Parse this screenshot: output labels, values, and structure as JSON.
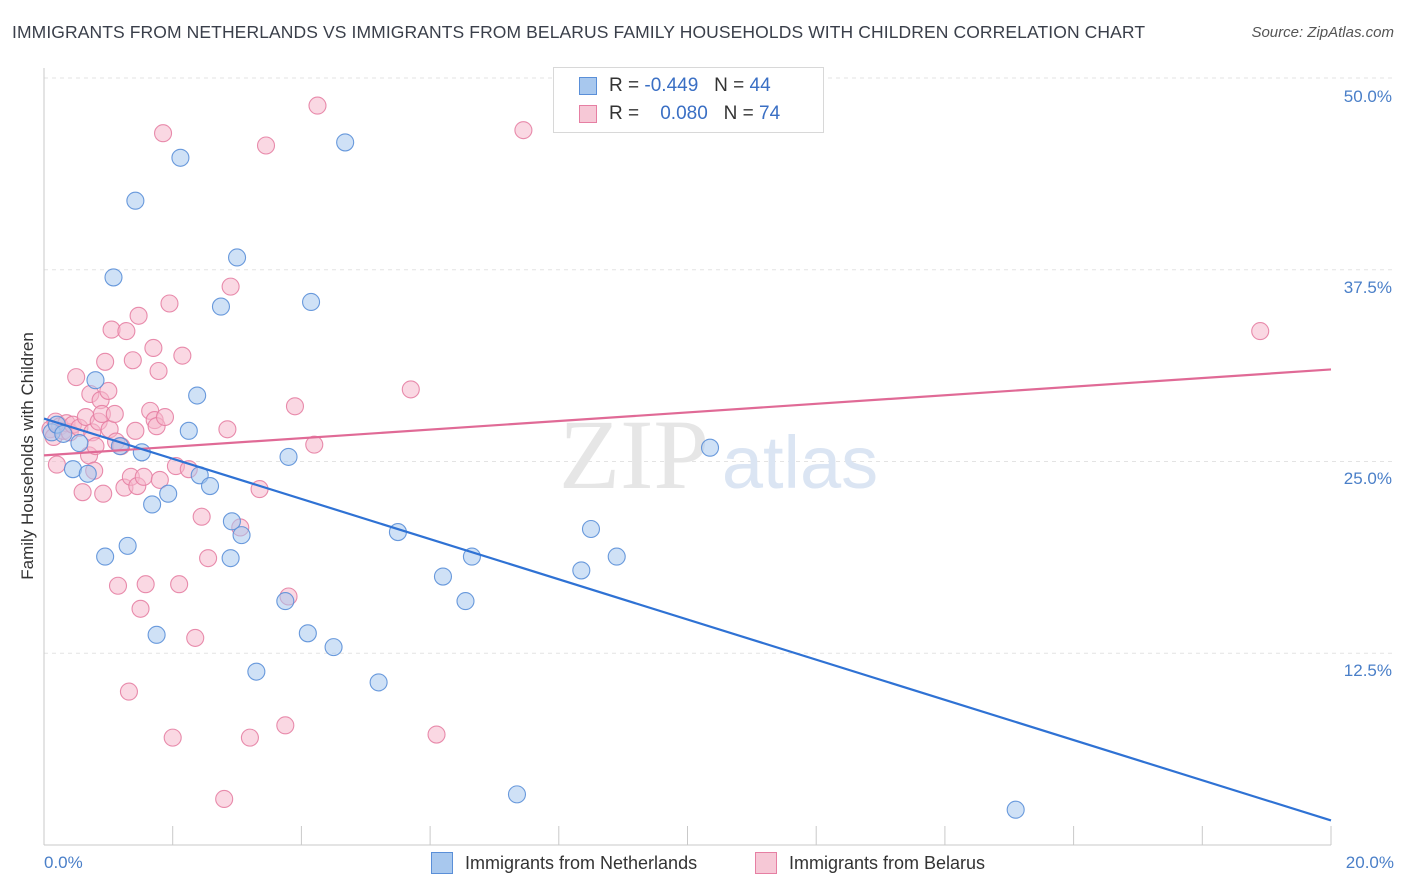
{
  "title": "IMMIGRANTS FROM NETHERLANDS VS IMMIGRANTS FROM BELARUS FAMILY HOUSEHOLDS WITH CHILDREN CORRELATION CHART",
  "source": "Source: ZipAtlas.com",
  "watermark": {
    "zip": "ZIP",
    "atlas": "atlas"
  },
  "stats": {
    "netherlands": {
      "r_label": "R =",
      "r": "-0.449",
      "n_label": "N =",
      "n": "44"
    },
    "belarus": {
      "r_label": "R =",
      "r": "0.080",
      "n_label": "N =",
      "n": "74"
    }
  },
  "legend": {
    "netherlands": "Immigrants from Netherlands",
    "belarus": "Immigrants from Belarus"
  },
  "colors": {
    "netherlands_fill": "#a8c8ee",
    "netherlands_stroke": "#5a8fd8",
    "netherlands_line": "#2f72d4",
    "belarus_fill": "#f6b8cc",
    "belarus_stroke": "#e67fa3",
    "belarus_line": "#e06a96",
    "axis_label": "#4a7fc8",
    "grid": "#e3e3e3"
  },
  "chart_data": {
    "type": "scatter",
    "title": "IMMIGRANTS FROM NETHERLANDS VS IMMIGRANTS FROM BELARUS FAMILY HOUSEHOLDS WITH CHILDREN CORRELATION CHART",
    "xlabel": "",
    "ylabel": "Family Households with Children",
    "xlim": [
      0,
      20
    ],
    "ylim": [
      0,
      50
    ],
    "x_tick_labels": [
      "0.0%",
      "20.0%"
    ],
    "y_ticks": [
      12.5,
      25.0,
      37.5,
      50.0
    ],
    "y_tick_labels": [
      "12.5%",
      "25.0%",
      "37.5%",
      "50.0%"
    ],
    "grid": true,
    "legend_position": "bottom-center",
    "series": [
      {
        "name": "Immigrants from Netherlands",
        "points": [
          [
            0.12,
            26.9
          ],
          [
            0.2,
            27.4
          ],
          [
            0.3,
            26.8
          ],
          [
            0.45,
            24.5
          ],
          [
            0.55,
            26.2
          ],
          [
            0.68,
            24.2
          ],
          [
            0.8,
            30.3
          ],
          [
            0.95,
            18.8
          ],
          [
            1.08,
            37.0
          ],
          [
            1.18,
            26.0
          ],
          [
            1.3,
            19.5
          ],
          [
            1.42,
            42.0
          ],
          [
            1.52,
            25.6
          ],
          [
            1.68,
            22.2
          ],
          [
            1.75,
            13.7
          ],
          [
            1.93,
            22.9
          ],
          [
            2.12,
            44.8
          ],
          [
            2.25,
            27.0
          ],
          [
            2.38,
            29.3
          ],
          [
            2.42,
            24.1
          ],
          [
            2.58,
            23.4
          ],
          [
            2.75,
            35.1
          ],
          [
            2.92,
            21.1
          ],
          [
            2.9,
            18.7
          ],
          [
            3.0,
            38.3
          ],
          [
            3.07,
            20.2
          ],
          [
            3.3,
            11.3
          ],
          [
            3.75,
            15.9
          ],
          [
            3.8,
            25.3
          ],
          [
            4.15,
            35.4
          ],
          [
            4.1,
            13.8
          ],
          [
            4.5,
            12.9
          ],
          [
            4.68,
            45.8
          ],
          [
            5.2,
            10.6
          ],
          [
            5.5,
            20.4
          ],
          [
            6.2,
            17.5
          ],
          [
            6.55,
            15.9
          ],
          [
            6.65,
            18.8
          ],
          [
            7.35,
            3.3
          ],
          [
            8.35,
            17.9
          ],
          [
            8.5,
            20.6
          ],
          [
            8.9,
            18.8
          ],
          [
            10.35,
            25.9
          ],
          [
            15.1,
            2.3
          ]
        ]
      },
      {
        "name": "Immigrants from Belarus",
        "points": [
          [
            0.1,
            27.1
          ],
          [
            0.15,
            26.6
          ],
          [
            0.18,
            27.6
          ],
          [
            0.2,
            24.8
          ],
          [
            0.25,
            27.3
          ],
          [
            0.3,
            27.0
          ],
          [
            0.35,
            27.5
          ],
          [
            0.4,
            26.9
          ],
          [
            0.45,
            27.4
          ],
          [
            0.5,
            30.5
          ],
          [
            0.55,
            27.2
          ],
          [
            0.6,
            23.0
          ],
          [
            0.65,
            27.9
          ],
          [
            0.7,
            25.4
          ],
          [
            0.72,
            29.4
          ],
          [
            0.75,
            26.9
          ],
          [
            0.78,
            24.4
          ],
          [
            0.8,
            26.0
          ],
          [
            0.85,
            27.6
          ],
          [
            0.88,
            29.0
          ],
          [
            0.9,
            28.1
          ],
          [
            0.92,
            22.9
          ],
          [
            0.95,
            31.5
          ],
          [
            1.0,
            29.6
          ],
          [
            1.02,
            27.1
          ],
          [
            1.05,
            33.6
          ],
          [
            1.1,
            28.1
          ],
          [
            1.12,
            26.3
          ],
          [
            1.15,
            16.9
          ],
          [
            1.2,
            26.0
          ],
          [
            1.25,
            23.3
          ],
          [
            1.28,
            33.5
          ],
          [
            1.32,
            10.0
          ],
          [
            1.35,
            24.0
          ],
          [
            1.38,
            31.6
          ],
          [
            1.42,
            27.0
          ],
          [
            1.45,
            23.4
          ],
          [
            1.47,
            34.5
          ],
          [
            1.5,
            15.4
          ],
          [
            1.55,
            24.0
          ],
          [
            1.58,
            17.0
          ],
          [
            1.65,
            28.3
          ],
          [
            1.7,
            32.4
          ],
          [
            1.72,
            27.7
          ],
          [
            1.75,
            27.3
          ],
          [
            1.78,
            30.9
          ],
          [
            1.8,
            23.8
          ],
          [
            1.85,
            46.4
          ],
          [
            1.88,
            27.9
          ],
          [
            1.95,
            35.3
          ],
          [
            2.0,
            7.0
          ],
          [
            2.05,
            24.7
          ],
          [
            2.1,
            17.0
          ],
          [
            2.15,
            31.9
          ],
          [
            2.25,
            24.5
          ],
          [
            2.35,
            13.5
          ],
          [
            2.45,
            21.4
          ],
          [
            2.55,
            18.7
          ],
          [
            2.8,
            3.0
          ],
          [
            2.85,
            27.1
          ],
          [
            2.9,
            36.4
          ],
          [
            3.05,
            20.7
          ],
          [
            3.2,
            7.0
          ],
          [
            3.35,
            23.2
          ],
          [
            3.45,
            45.6
          ],
          [
            3.75,
            7.8
          ],
          [
            3.8,
            16.2
          ],
          [
            3.9,
            28.6
          ],
          [
            4.2,
            26.1
          ],
          [
            4.25,
            48.2
          ],
          [
            5.7,
            29.7
          ],
          [
            6.1,
            7.2
          ],
          [
            7.45,
            46.6
          ],
          [
            18.9,
            33.5
          ]
        ]
      }
    ],
    "trend_lines": [
      {
        "series": "Immigrants from Netherlands",
        "x": [
          0,
          20
        ],
        "y": [
          27.8,
          1.6
        ]
      },
      {
        "series": "Immigrants from Belarus",
        "x": [
          0,
          20
        ],
        "y": [
          25.4,
          31.0
        ]
      }
    ]
  }
}
